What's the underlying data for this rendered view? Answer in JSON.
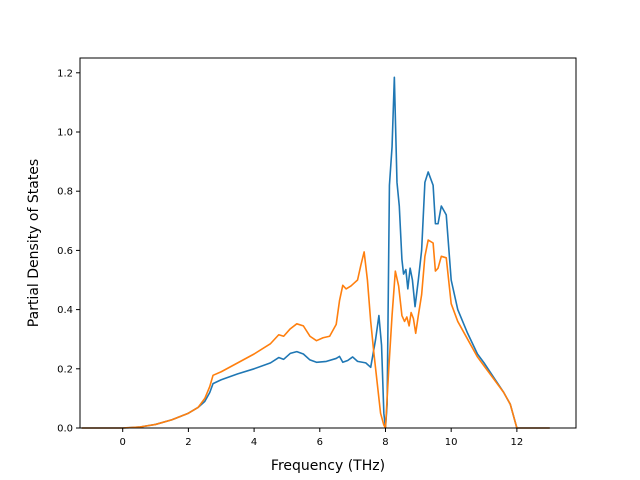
{
  "chart_data": {
    "type": "line",
    "title": "",
    "xlabel": "Frequency (THz)",
    "ylabel": "Partial Density of States",
    "xlim": [
      -1.3,
      13.8
    ],
    "ylim": [
      0.0,
      1.25
    ],
    "xticks": [
      0,
      2,
      4,
      6,
      8,
      10,
      12
    ],
    "xtick_labels": [
      "0",
      "2",
      "4",
      "6",
      "8",
      "10",
      "12"
    ],
    "yticks": [
      0.0,
      0.2,
      0.4,
      0.6,
      0.8,
      1.0,
      1.2
    ],
    "ytick_labels": [
      "0.0",
      "0.2",
      "0.4",
      "0.6",
      "0.8",
      "1.0",
      "1.2"
    ],
    "grid": false,
    "legend": "none",
    "colors": [
      "#1f77b4",
      "#ff7f0e"
    ],
    "series": [
      {
        "color": "#1f77b4",
        "points": [
          [
            -1.25,
            0.0
          ],
          [
            0.0,
            0.0
          ],
          [
            0.5,
            0.003
          ],
          [
            1.0,
            0.012
          ],
          [
            1.5,
            0.028
          ],
          [
            2.0,
            0.05
          ],
          [
            2.3,
            0.07
          ],
          [
            2.5,
            0.09
          ],
          [
            2.65,
            0.12
          ],
          [
            2.75,
            0.15
          ],
          [
            3.0,
            0.163
          ],
          [
            3.5,
            0.183
          ],
          [
            4.0,
            0.2
          ],
          [
            4.5,
            0.22
          ],
          [
            4.75,
            0.238
          ],
          [
            4.9,
            0.232
          ],
          [
            5.1,
            0.252
          ],
          [
            5.3,
            0.258
          ],
          [
            5.5,
            0.25
          ],
          [
            5.7,
            0.23
          ],
          [
            5.9,
            0.222
          ],
          [
            6.2,
            0.225
          ],
          [
            6.5,
            0.235
          ],
          [
            6.6,
            0.242
          ],
          [
            6.7,
            0.222
          ],
          [
            6.85,
            0.228
          ],
          [
            7.0,
            0.24
          ],
          [
            7.15,
            0.225
          ],
          [
            7.4,
            0.22
          ],
          [
            7.55,
            0.205
          ],
          [
            7.7,
            0.3
          ],
          [
            7.8,
            0.38
          ],
          [
            7.88,
            0.28
          ],
          [
            7.95,
            0.05
          ],
          [
            8.0,
            0.0
          ],
          [
            8.05,
            0.08
          ],
          [
            8.12,
            0.82
          ],
          [
            8.2,
            0.95
          ],
          [
            8.27,
            1.185
          ],
          [
            8.35,
            0.83
          ],
          [
            8.42,
            0.75
          ],
          [
            8.5,
            0.57
          ],
          [
            8.55,
            0.52
          ],
          [
            8.62,
            0.535
          ],
          [
            8.68,
            0.47
          ],
          [
            8.75,
            0.54
          ],
          [
            8.82,
            0.5
          ],
          [
            8.9,
            0.41
          ],
          [
            9.0,
            0.5
          ],
          [
            9.1,
            0.6
          ],
          [
            9.2,
            0.83
          ],
          [
            9.3,
            0.865
          ],
          [
            9.45,
            0.82
          ],
          [
            9.52,
            0.69
          ],
          [
            9.6,
            0.69
          ],
          [
            9.7,
            0.75
          ],
          [
            9.85,
            0.72
          ],
          [
            10.0,
            0.5
          ],
          [
            10.2,
            0.4
          ],
          [
            10.5,
            0.32
          ],
          [
            10.8,
            0.25
          ],
          [
            11.0,
            0.22
          ],
          [
            11.3,
            0.17
          ],
          [
            11.6,
            0.12
          ],
          [
            11.8,
            0.08
          ],
          [
            11.9,
            0.04
          ],
          [
            12.0,
            0.0
          ],
          [
            13.0,
            0.0
          ]
        ]
      },
      {
        "color": "#ff7f0e",
        "points": [
          [
            -1.25,
            0.0
          ],
          [
            0.0,
            0.0
          ],
          [
            0.5,
            0.003
          ],
          [
            1.0,
            0.012
          ],
          [
            1.5,
            0.028
          ],
          [
            2.0,
            0.05
          ],
          [
            2.3,
            0.07
          ],
          [
            2.5,
            0.1
          ],
          [
            2.65,
            0.14
          ],
          [
            2.75,
            0.178
          ],
          [
            3.0,
            0.19
          ],
          [
            3.5,
            0.22
          ],
          [
            4.0,
            0.25
          ],
          [
            4.5,
            0.285
          ],
          [
            4.75,
            0.315
          ],
          [
            4.9,
            0.31
          ],
          [
            5.1,
            0.335
          ],
          [
            5.3,
            0.352
          ],
          [
            5.5,
            0.345
          ],
          [
            5.7,
            0.31
          ],
          [
            5.9,
            0.295
          ],
          [
            6.1,
            0.305
          ],
          [
            6.3,
            0.31
          ],
          [
            6.5,
            0.35
          ],
          [
            6.6,
            0.43
          ],
          [
            6.7,
            0.482
          ],
          [
            6.8,
            0.47
          ],
          [
            6.95,
            0.48
          ],
          [
            7.05,
            0.49
          ],
          [
            7.15,
            0.5
          ],
          [
            7.25,
            0.55
          ],
          [
            7.35,
            0.595
          ],
          [
            7.45,
            0.5
          ],
          [
            7.55,
            0.36
          ],
          [
            7.65,
            0.25
          ],
          [
            7.75,
            0.15
          ],
          [
            7.85,
            0.05
          ],
          [
            7.95,
            0.01
          ],
          [
            8.0,
            0.0
          ],
          [
            8.1,
            0.2
          ],
          [
            8.2,
            0.38
          ],
          [
            8.3,
            0.53
          ],
          [
            8.4,
            0.48
          ],
          [
            8.5,
            0.38
          ],
          [
            8.58,
            0.36
          ],
          [
            8.65,
            0.375
          ],
          [
            8.72,
            0.345
          ],
          [
            8.78,
            0.39
          ],
          [
            8.85,
            0.37
          ],
          [
            8.92,
            0.32
          ],
          [
            9.0,
            0.38
          ],
          [
            9.1,
            0.45
          ],
          [
            9.2,
            0.58
          ],
          [
            9.3,
            0.635
          ],
          [
            9.45,
            0.625
          ],
          [
            9.52,
            0.53
          ],
          [
            9.6,
            0.54
          ],
          [
            9.7,
            0.58
          ],
          [
            9.85,
            0.575
          ],
          [
            10.0,
            0.42
          ],
          [
            10.2,
            0.36
          ],
          [
            10.5,
            0.3
          ],
          [
            10.8,
            0.24
          ],
          [
            11.0,
            0.21
          ],
          [
            11.3,
            0.165
          ],
          [
            11.6,
            0.12
          ],
          [
            11.8,
            0.08
          ],
          [
            11.9,
            0.04
          ],
          [
            12.0,
            0.0
          ],
          [
            13.0,
            0.0
          ]
        ]
      }
    ]
  }
}
